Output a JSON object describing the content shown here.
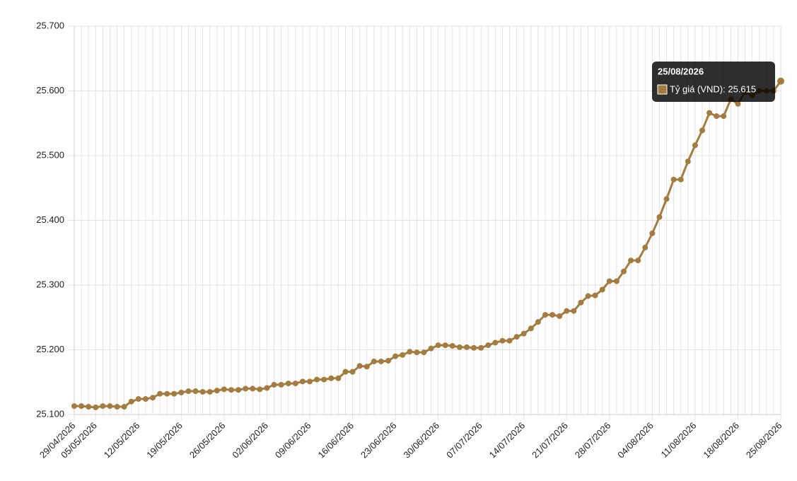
{
  "chart_data": {
    "type": "line",
    "categories": [
      "29/04/2026",
      null,
      null,
      "05/05/2026",
      null,
      null,
      null,
      null,
      null,
      "12/05/2026",
      null,
      null,
      null,
      null,
      null,
      "19/05/2026",
      null,
      null,
      null,
      null,
      null,
      "26/05/2026",
      null,
      null,
      null,
      null,
      null,
      "02/06/2026",
      null,
      null,
      null,
      null,
      null,
      "09/06/2026",
      null,
      null,
      null,
      null,
      null,
      "16/06/2026",
      null,
      null,
      null,
      null,
      null,
      "23/06/2026",
      null,
      null,
      null,
      null,
      null,
      "30/06/2026",
      null,
      null,
      null,
      null,
      null,
      "07/07/2026",
      null,
      null,
      null,
      null,
      null,
      "14/07/2026",
      null,
      null,
      null,
      null,
      null,
      "21/07/2026",
      null,
      null,
      null,
      null,
      null,
      "28/07/2026",
      null,
      null,
      null,
      null,
      null,
      "04/08/2026",
      null,
      null,
      null,
      null,
      null,
      "11/08/2026",
      null,
      null,
      null,
      null,
      null,
      "18/08/2026",
      null,
      null,
      null,
      null,
      null,
      "25/08/2026"
    ],
    "series": [
      {
        "name": "Tỷ giá (VND)",
        "color": "#a57c3f",
        "values": [
          25113,
          25113,
          25112,
          25111,
          25113,
          25113,
          25112,
          25112,
          25120,
          25124,
          25124,
          25126,
          25132,
          25132,
          25132,
          25134,
          25136,
          25136,
          25135,
          25135,
          25137,
          25139,
          25138,
          25138,
          25140,
          25140,
          25139,
          25141,
          25146,
          25146,
          25148,
          25148,
          25151,
          25151,
          25154,
          25154,
          25156,
          25156,
          25166,
          25166,
          25175,
          25174,
          25182,
          25182,
          25183,
          25190,
          25192,
          25197,
          25196,
          25196,
          25202,
          25207,
          25207,
          25206,
          25204,
          25204,
          25203,
          25203,
          25207,
          25211,
          25214,
          25214,
          25220,
          25225,
          25233,
          25243,
          25254,
          25254,
          25252,
          25260,
          25260,
          25273,
          25283,
          25284,
          25293,
          25306,
          25306,
          25321,
          25338,
          25338,
          25358,
          25380,
          25405,
          25433,
          25463,
          25463,
          25491,
          25516,
          25539,
          25566,
          25561,
          25561,
          25587,
          25580,
          25598,
          25593,
          25600,
          25600,
          25600,
          25615
        ]
      }
    ],
    "ylim": [
      25100,
      25700
    ],
    "yticks": [
      {
        "value": 25100,
        "label": "25.100"
      },
      {
        "value": 25200,
        "label": "25.200"
      },
      {
        "value": 25300,
        "label": "25.300"
      },
      {
        "value": 25400,
        "label": "25.400"
      },
      {
        "value": 25500,
        "label": "25.500"
      },
      {
        "value": 25600,
        "label": "25.600"
      },
      {
        "value": 25700,
        "label": "25.700"
      }
    ],
    "grid": true,
    "tooltip": {
      "title": "25/08/2026",
      "text": "Tỷ giá (VND): 25.615"
    }
  }
}
